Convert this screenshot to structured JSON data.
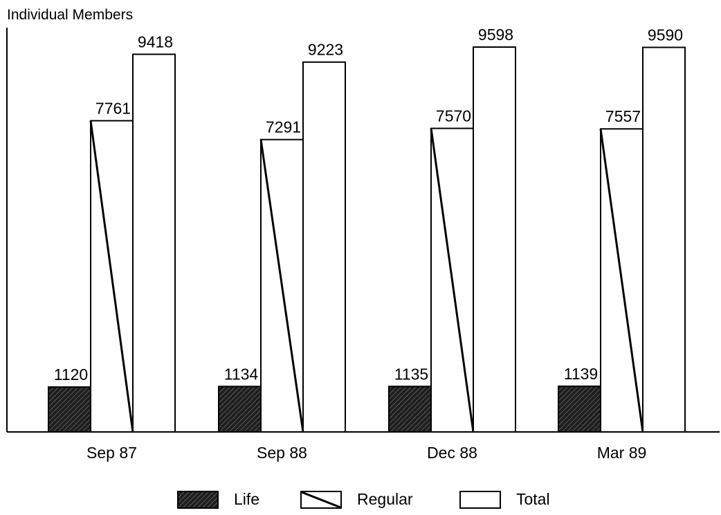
{
  "chart_data": {
    "type": "bar",
    "ylabel": "Individual Members",
    "xlabel": "",
    "categories": [
      "Sep 87",
      "Sep 88",
      "Dec 88",
      "Mar 89"
    ],
    "series": [
      {
        "name": "Life",
        "values": [
          1120,
          1134,
          1135,
          1139
        ],
        "fill": "#2a2a2a",
        "pattern": "hatched"
      },
      {
        "name": "Regular",
        "values": [
          7761,
          7291,
          7570,
          7557
        ],
        "fill": "#ffffff",
        "pattern": "diagonal-line"
      },
      {
        "name": "Total",
        "values": [
          9418,
          9223,
          9598,
          9590
        ],
        "fill": "#ffffff",
        "pattern": "none"
      }
    ],
    "ylim": [
      0,
      9598
    ],
    "grid": false,
    "legend_position": "bottom",
    "data_labels": true
  }
}
